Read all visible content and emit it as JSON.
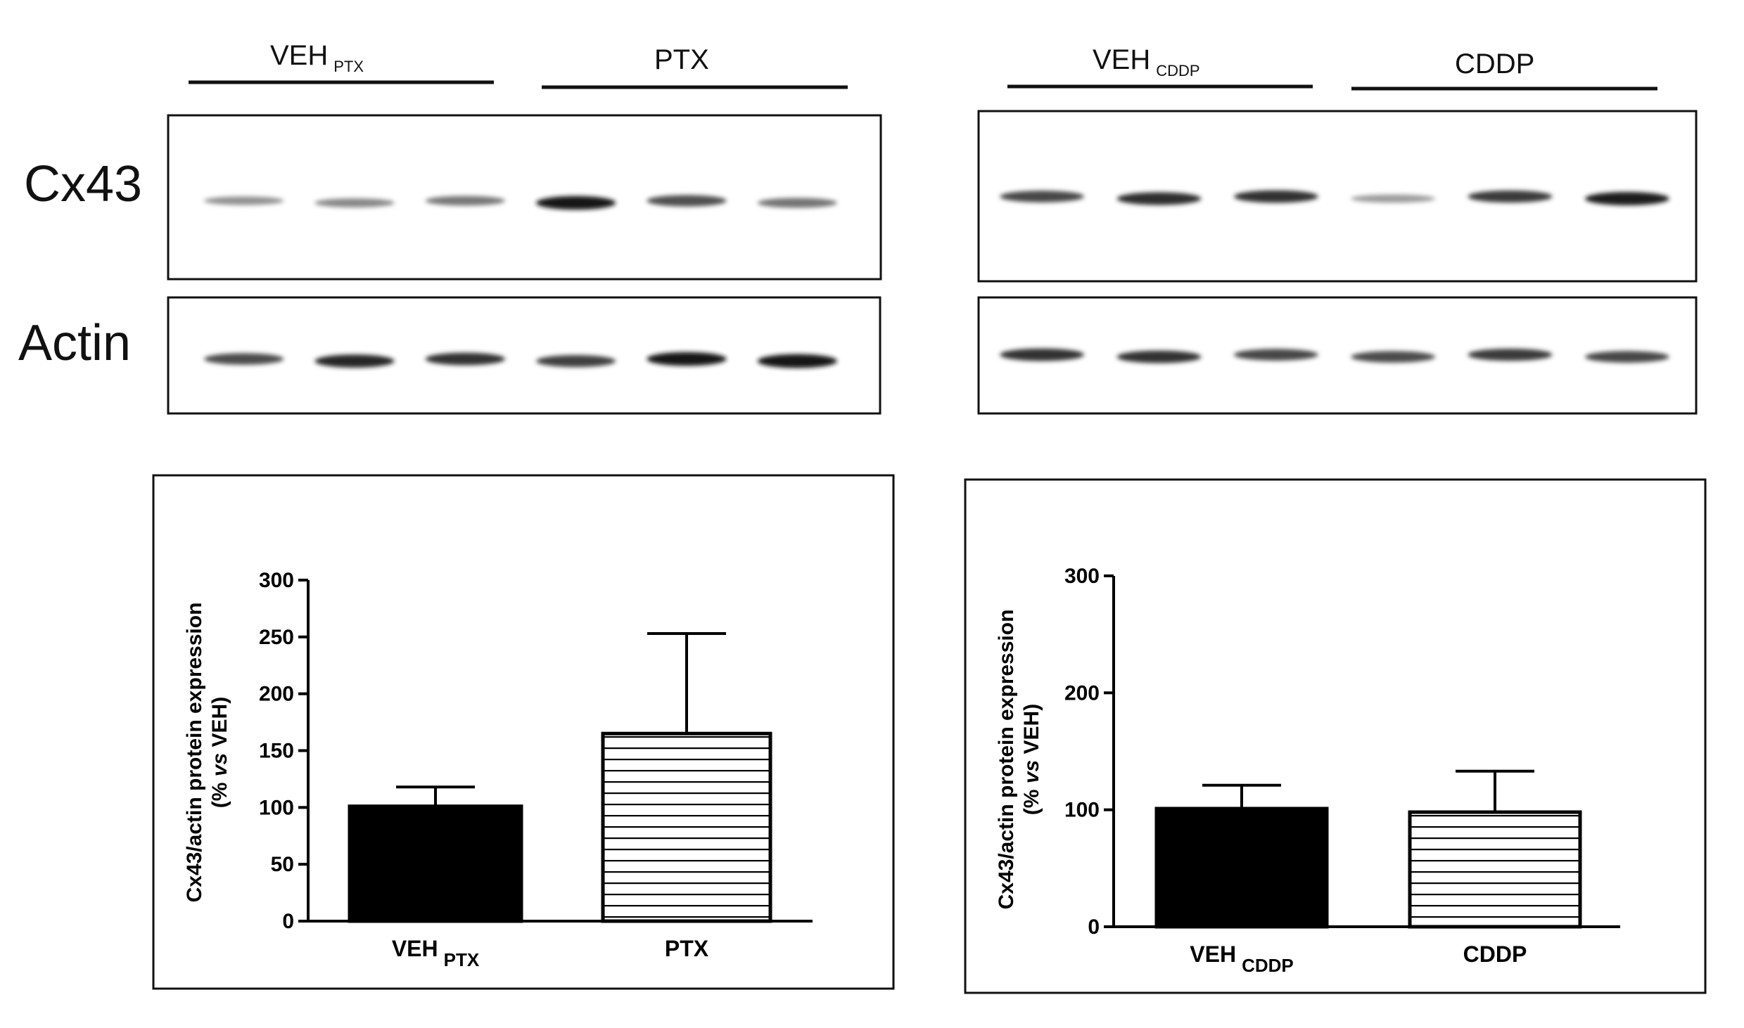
{
  "blot_labels": {
    "cx43": "Cx43",
    "actin": "Actin"
  },
  "blots": [
    {
      "groups": [
        {
          "main": "VEH",
          "sub": "PTX"
        },
        {
          "main": "PTX",
          "sub": ""
        }
      ],
      "cx43_band_intensity": [
        0.35,
        0.4,
        0.48,
        0.95,
        0.68,
        0.5
      ],
      "actin_band_intensity": [
        0.7,
        0.88,
        0.82,
        0.75,
        0.95,
        0.97
      ]
    },
    {
      "groups": [
        {
          "main": "VEH",
          "sub": "CDDP"
        },
        {
          "main": "CDDP",
          "sub": ""
        }
      ],
      "cx43_band_intensity": [
        0.72,
        0.85,
        0.82,
        0.3,
        0.78,
        0.92
      ],
      "actin_band_intensity": [
        0.82,
        0.82,
        0.72,
        0.7,
        0.78,
        0.72
      ]
    }
  ],
  "chart_data": [
    {
      "type": "bar",
      "categories": [
        {
          "main": "VEH",
          "sub": "PTX"
        },
        {
          "main": "PTX",
          "sub": ""
        }
      ],
      "values": [
        101,
        165
      ],
      "errors": [
        17,
        88
      ],
      "fills": [
        "solid",
        "horizontal-lines"
      ],
      "ylabel_line1": "Cx43/actin protein expression",
      "ylabel_line2_prefix": "(% ",
      "ylabel_line2_italic": "vs",
      "ylabel_line2_suffix": " VEH)",
      "ylim": [
        0,
        300
      ],
      "yticks": [
        0,
        50,
        100,
        150,
        200,
        250,
        300
      ],
      "bar_color": "#000000"
    },
    {
      "type": "bar",
      "categories": [
        {
          "main": "VEH",
          "sub": "CDDP"
        },
        {
          "main": "CDDP",
          "sub": ""
        }
      ],
      "values": [
        101,
        98
      ],
      "errors": [
        20,
        35
      ],
      "fills": [
        "solid",
        "horizontal-lines"
      ],
      "ylabel_line1": "Cx43/actin protein expression",
      "ylabel_line2_prefix": "(% ",
      "ylabel_line2_italic": "vs",
      "ylabel_line2_suffix": " VEH)",
      "ylim": [
        0,
        300
      ],
      "yticks": [
        0,
        100,
        200,
        300
      ],
      "bar_color": "#000000"
    }
  ]
}
